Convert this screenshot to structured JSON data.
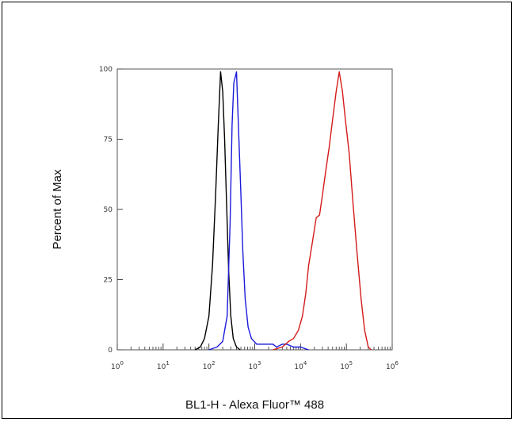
{
  "chart_data": {
    "type": "line",
    "xlabel": "BL1-H - Alexa Fluor™ 488",
    "ylabel": "Percent of Max",
    "x_scale": "log",
    "xlim": [
      1,
      1000000
    ],
    "ylim": [
      0,
      100
    ],
    "grid": false,
    "legend": "none",
    "x_ticks": [
      {
        "base": "10",
        "exp": "0"
      },
      {
        "base": "10",
        "exp": "1"
      },
      {
        "base": "10",
        "exp": "2"
      },
      {
        "base": "10",
        "exp": "3"
      },
      {
        "base": "10",
        "exp": "4"
      },
      {
        "base": "10",
        "exp": "5"
      },
      {
        "base": "10",
        "exp": "6"
      }
    ],
    "x_tick_values": [
      1,
      10,
      100,
      1000,
      10000,
      100000,
      1000000
    ],
    "y_ticks": [
      "0",
      "25",
      "50",
      "75",
      "100"
    ],
    "y_tick_values": [
      0,
      25,
      50,
      75,
      100
    ],
    "series": [
      {
        "color": "#000000",
        "points": [
          [
            50,
            0
          ],
          [
            65,
            1
          ],
          [
            80,
            4
          ],
          [
            100,
            12
          ],
          [
            120,
            30
          ],
          [
            140,
            55
          ],
          [
            160,
            80
          ],
          [
            180,
            99
          ],
          [
            200,
            92
          ],
          [
            220,
            75
          ],
          [
            245,
            50
          ],
          [
            270,
            28
          ],
          [
            300,
            12
          ],
          [
            340,
            4
          ],
          [
            400,
            1
          ],
          [
            480,
            0
          ]
        ]
      },
      {
        "color": "#1a1adb",
        "points": [
          [
            100,
            0
          ],
          [
            150,
            1
          ],
          [
            200,
            3
          ],
          [
            250,
            12
          ],
          [
            290,
            45
          ],
          [
            320,
            80
          ],
          [
            350,
            95
          ],
          [
            400,
            99
          ],
          [
            440,
            80
          ],
          [
            500,
            55
          ],
          [
            550,
            35
          ],
          [
            620,
            18
          ],
          [
            720,
            8
          ],
          [
            850,
            4
          ],
          [
            1100,
            2
          ],
          [
            1500,
            2
          ],
          [
            2000,
            2
          ],
          [
            2500,
            2
          ],
          [
            3000,
            1
          ],
          [
            4000,
            2
          ],
          [
            5000,
            2
          ],
          [
            7000,
            1
          ],
          [
            10000,
            1
          ],
          [
            15000,
            0
          ]
        ]
      },
      {
        "color": "#d41a1a",
        "points": [
          [
            2500,
            0
          ],
          [
            4000,
            1
          ],
          [
            5500,
            3
          ],
          [
            7000,
            4
          ],
          [
            9000,
            7
          ],
          [
            11000,
            12
          ],
          [
            13000,
            20
          ],
          [
            15000,
            30
          ],
          [
            18000,
            38
          ],
          [
            22000,
            47
          ],
          [
            26000,
            48
          ],
          [
            30000,
            55
          ],
          [
            35000,
            63
          ],
          [
            42000,
            72
          ],
          [
            50000,
            82
          ],
          [
            60000,
            92
          ],
          [
            70000,
            99
          ],
          [
            82000,
            92
          ],
          [
            95000,
            82
          ],
          [
            115000,
            70
          ],
          [
            140000,
            52
          ],
          [
            170000,
            35
          ],
          [
            210000,
            18
          ],
          [
            250000,
            7
          ],
          [
            300000,
            1
          ],
          [
            350000,
            0
          ]
        ]
      }
    ]
  }
}
